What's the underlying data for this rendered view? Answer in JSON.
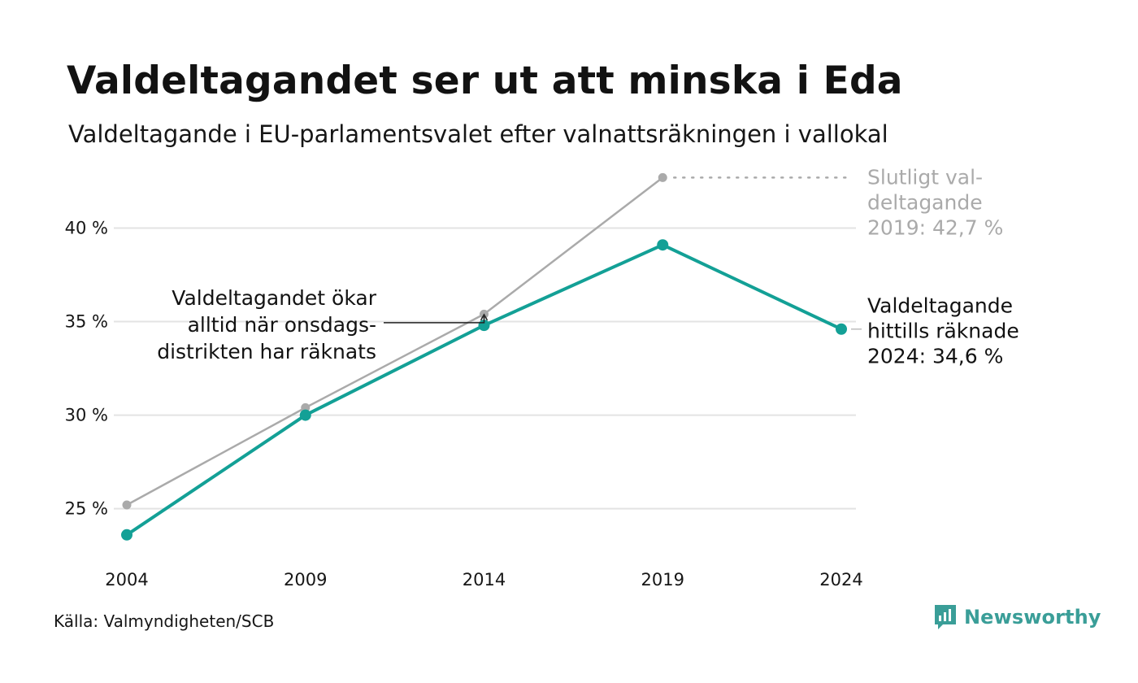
{
  "header": {
    "title": "Valdeltagandet ser ut att minska i Eda",
    "subtitle": "Valdeltagande i EU-parlamentsvalet efter valnattsräkningen i vallokal"
  },
  "footer": {
    "source": "Källa: Valmyndigheten/SCB",
    "brand": "Newsworthy"
  },
  "colors": {
    "primary": "#13a096",
    "secondary": "#aaaaaa",
    "grid": "#e3e3e3",
    "logo": "#3a9e98"
  },
  "chart_data": {
    "type": "line",
    "title": "Valdeltagandet ser ut att minska i Eda",
    "subtitle": "Valdeltagande i EU-parlamentsvalet efter valnattsräkningen i vallokal",
    "x": [
      2004,
      2009,
      2014,
      2019,
      2024
    ],
    "x_tick_labels": [
      "2004",
      "2009",
      "2014",
      "2019",
      "2024"
    ],
    "y_ticks": [
      25,
      30,
      35,
      40
    ],
    "y_tick_labels": [
      "25 %",
      "30 %",
      "35 %",
      "40 %"
    ],
    "ylim": [
      22.2,
      43.5
    ],
    "grid": true,
    "series": [
      {
        "key": "final",
        "color": "#aaaaaa",
        "x": [
          2004,
          2009,
          2014,
          2019
        ],
        "values": [
          25.2,
          30.4,
          35.4,
          42.7
        ],
        "extension_to": 2024
      },
      {
        "key": "counted",
        "color": "#13a096",
        "x": [
          2004,
          2009,
          2014,
          2019,
          2024
        ],
        "values": [
          23.6,
          30.0,
          34.8,
          39.1,
          34.6
        ]
      }
    ],
    "annotations": {
      "final_label": [
        "Slutligt val-",
        "deltagande",
        "2019: 42,7 %"
      ],
      "counted_label": [
        "Valdeltagande",
        "hittills räknade",
        "2024: 34,6 %"
      ],
      "note": [
        "Valdeltagandet ökar",
        "alltid när onsdags-",
        "distrikten har räknats"
      ],
      "note_target_x": 2014
    }
  }
}
